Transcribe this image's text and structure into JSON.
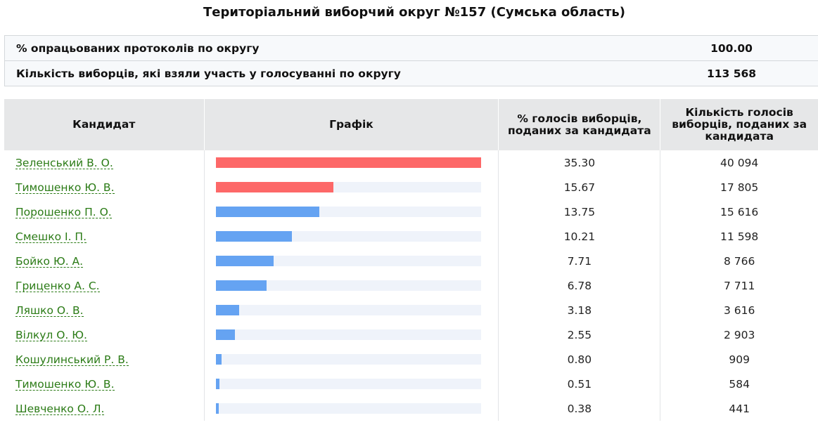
{
  "page": {
    "title": "Територіальний виборчий округ №157 (Сумська область)"
  },
  "summary": [
    {
      "label": "% опрацьованих протоколів по округу",
      "value": "100.00"
    },
    {
      "label": "Кількість виборців, які взяли участь у голосуванні по округу",
      "value": "113 568"
    }
  ],
  "table": {
    "headers": {
      "candidate": "Кандидат",
      "chart": "Графік",
      "percent": "% голосів виборців, поданих за кандидата",
      "votes": "Кількість голосів виборців, поданих за кандидата"
    },
    "colors": {
      "leader": "#fd6868",
      "other": "#65a3f2",
      "track": "#eff3fa",
      "link": "#2b7b16"
    },
    "rows": [
      {
        "name": "Зеленський В. О.",
        "percent": "35.30",
        "votes": "40 094",
        "bar": 1.0,
        "color": "#fd6868"
      },
      {
        "name": "Тимошенко Ю. В.",
        "percent": "15.67",
        "votes": "17 805",
        "bar": 0.444,
        "color": "#fd6868"
      },
      {
        "name": "Порошенко П. О.",
        "percent": "13.75",
        "votes": "15 616",
        "bar": 0.39,
        "color": "#65a3f2"
      },
      {
        "name": "Смешко І. П.",
        "percent": "10.21",
        "votes": "11 598",
        "bar": 0.289,
        "color": "#65a3f2"
      },
      {
        "name": "Бойко Ю. А.",
        "percent": "7.71",
        "votes": "8 766",
        "bar": 0.218,
        "color": "#65a3f2"
      },
      {
        "name": "Гриценко А. С.",
        "percent": "6.78",
        "votes": "7 711",
        "bar": 0.192,
        "color": "#65a3f2"
      },
      {
        "name": "Ляшко О. В.",
        "percent": "3.18",
        "votes": "3 616",
        "bar": 0.09,
        "color": "#65a3f2"
      },
      {
        "name": "Вілкул О. Ю.",
        "percent": "2.55",
        "votes": "2 903",
        "bar": 0.072,
        "color": "#65a3f2"
      },
      {
        "name": "Кошулинський Р. В.",
        "percent": "0.80",
        "votes": "909",
        "bar": 0.023,
        "color": "#65a3f2"
      },
      {
        "name": "Тимошенко Ю. В.",
        "percent": "0.51",
        "votes": "584",
        "bar": 0.014,
        "color": "#65a3f2"
      },
      {
        "name": "Шевченко О. Л.",
        "percent": "0.38",
        "votes": "441",
        "bar": 0.011,
        "color": "#65a3f2"
      }
    ]
  }
}
